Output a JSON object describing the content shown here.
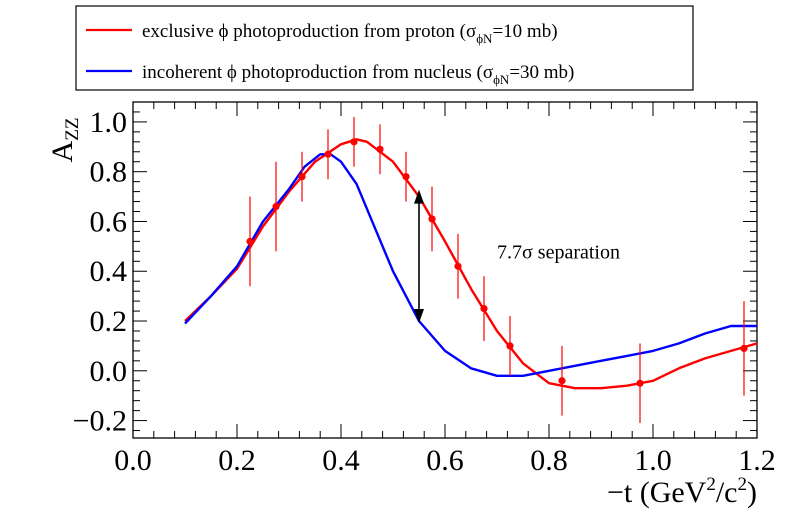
{
  "chart_data": {
    "type": "line",
    "title": "",
    "xlabel": "−t  (GeV²/c²)",
    "ylabel": "A_ZZ",
    "xlim": [
      0.0,
      1.2
    ],
    "ylim": [
      -0.27,
      1.08
    ],
    "x_ticks": [
      {
        "value": 0.0,
        "label": "0.0"
      },
      {
        "value": 0.2,
        "label": "0.2"
      },
      {
        "value": 0.4,
        "label": "0.4"
      },
      {
        "value": 0.6,
        "label": "0.6"
      },
      {
        "value": 0.8,
        "label": "0.8"
      },
      {
        "value": 1.0,
        "label": "1.0"
      },
      {
        "value": 1.2,
        "label": "1.2"
      }
    ],
    "y_ticks": [
      {
        "value": -0.2,
        "label": "−0.2"
      },
      {
        "value": 0.0,
        "label": "0.0"
      },
      {
        "value": 0.2,
        "label": "0.2"
      },
      {
        "value": 0.4,
        "label": "0.4"
      },
      {
        "value": 0.6,
        "label": "0.6"
      },
      {
        "value": 0.8,
        "label": "0.8"
      },
      {
        "value": 1.0,
        "label": "1.0"
      }
    ],
    "series": [
      {
        "name": "exclusive ϕ photoproduction from proton (σϕN=10 mb)",
        "legend_main": "exclusive ϕ photoproduction from proton (σ",
        "legend_sub": "ϕN",
        "legend_tail": "=10 mb)",
        "color": "#ff0000",
        "curve": [
          [
            0.1,
            0.2
          ],
          [
            0.15,
            0.3
          ],
          [
            0.2,
            0.41
          ],
          [
            0.25,
            0.58
          ],
          [
            0.3,
            0.72
          ],
          [
            0.35,
            0.84
          ],
          [
            0.4,
            0.91
          ],
          [
            0.43,
            0.93
          ],
          [
            0.45,
            0.92
          ],
          [
            0.5,
            0.84
          ],
          [
            0.55,
            0.7
          ],
          [
            0.6,
            0.52
          ],
          [
            0.65,
            0.33
          ],
          [
            0.7,
            0.16
          ],
          [
            0.75,
            0.03
          ],
          [
            0.8,
            -0.05
          ],
          [
            0.85,
            -0.07
          ],
          [
            0.9,
            -0.07
          ],
          [
            0.95,
            -0.06
          ],
          [
            1.0,
            -0.04
          ],
          [
            1.05,
            0.01
          ],
          [
            1.1,
            0.05
          ],
          [
            1.15,
            0.08
          ],
          [
            1.2,
            0.11
          ]
        ],
        "points": [
          {
            "x": 0.225,
            "y": 0.52,
            "err": 0.18
          },
          {
            "x": 0.275,
            "y": 0.66,
            "err": 0.18
          },
          {
            "x": 0.325,
            "y": 0.78,
            "err": 0.1
          },
          {
            "x": 0.375,
            "y": 0.87,
            "err": 0.1
          },
          {
            "x": 0.425,
            "y": 0.92,
            "err": 0.1
          },
          {
            "x": 0.475,
            "y": 0.89,
            "err": 0.1
          },
          {
            "x": 0.525,
            "y": 0.78,
            "err": 0.1
          },
          {
            "x": 0.575,
            "y": 0.61,
            "err": 0.13
          },
          {
            "x": 0.625,
            "y": 0.42,
            "err": 0.13
          },
          {
            "x": 0.675,
            "y": 0.25,
            "err": 0.13
          },
          {
            "x": 0.725,
            "y": 0.1,
            "err": 0.12
          },
          {
            "x": 0.825,
            "y": -0.04,
            "err": 0.14
          },
          {
            "x": 0.975,
            "y": -0.05,
            "err": 0.16
          },
          {
            "x": 1.175,
            "y": 0.09,
            "err": 0.19
          }
        ]
      },
      {
        "name": "incoherent ϕ photoproduction from nucleus (σϕN=30 mb)",
        "legend_main": "incoherent ϕ photoproduction from nucleus (σ",
        "legend_sub": "ϕN",
        "legend_tail": "=30 mb)",
        "color": "#0000ff",
        "curve": [
          [
            0.1,
            0.19
          ],
          [
            0.15,
            0.3
          ],
          [
            0.2,
            0.42
          ],
          [
            0.25,
            0.6
          ],
          [
            0.3,
            0.73
          ],
          [
            0.33,
            0.82
          ],
          [
            0.36,
            0.87
          ],
          [
            0.38,
            0.87
          ],
          [
            0.4,
            0.84
          ],
          [
            0.43,
            0.75
          ],
          [
            0.47,
            0.55
          ],
          [
            0.5,
            0.4
          ],
          [
            0.55,
            0.2
          ],
          [
            0.6,
            0.08
          ],
          [
            0.65,
            0.01
          ],
          [
            0.7,
            -0.02
          ],
          [
            0.75,
            -0.02
          ],
          [
            0.8,
            0.0
          ],
          [
            0.85,
            0.02
          ],
          [
            0.9,
            0.04
          ],
          [
            0.95,
            0.06
          ],
          [
            1.0,
            0.08
          ],
          [
            1.05,
            0.11
          ],
          [
            1.1,
            0.15
          ],
          [
            1.15,
            0.18
          ],
          [
            1.2,
            0.18
          ]
        ]
      }
    ],
    "annotation": {
      "text": "7.7σ separation",
      "arrow_x": 0.55,
      "arrow_y_from": 0.2,
      "arrow_y_to": 0.72
    },
    "legend_position": "top-left"
  }
}
